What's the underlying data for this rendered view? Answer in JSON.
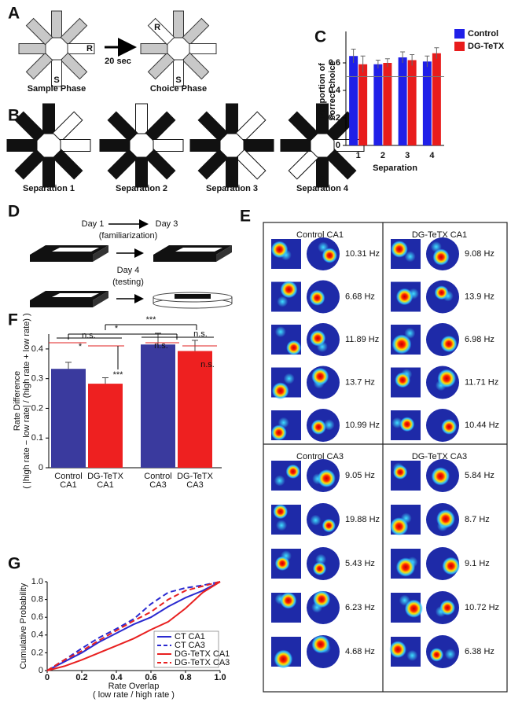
{
  "panel_labels": [
    "A",
    "B",
    "C",
    "D",
    "E",
    "F",
    "G"
  ],
  "panel_a": {
    "maze_labels": [
      "R",
      "S",
      "R",
      "S"
    ],
    "delay": "20 sec",
    "phases": [
      "Sample Phase",
      "Choice Phase"
    ]
  },
  "panel_b": {
    "start_labels": [
      "S",
      "S",
      "S",
      "S"
    ],
    "separations": [
      "Separation 1",
      "Separation 2",
      "Separation 3",
      "Separation 4"
    ]
  },
  "panel_d": {
    "day1": "Day 1",
    "day3": "Day 3",
    "familiarization": "(familiarization)",
    "day4": "Day 4",
    "testing": "(testing)"
  },
  "panel_e": {
    "groups": [
      {
        "title": "Control CA1",
        "rates": [
          "10.31 Hz",
          "6.68 Hz",
          "11.89 Hz",
          "13.7 Hz",
          "10.99 Hz"
        ]
      },
      {
        "title": "DG-TeTX CA1",
        "rates": [
          "9.08 Hz",
          "13.9 Hz",
          "6.98 Hz",
          "11.71 Hz",
          "10.44 Hz"
        ]
      },
      {
        "title": "Control CA3",
        "rates": [
          "9.05 Hz",
          "19.88 Hz",
          "5.43 Hz",
          "6.23 Hz",
          "4.68 Hz"
        ]
      },
      {
        "title": "DG-TeTX CA3",
        "rates": [
          "5.84 Hz",
          "8.7 Hz",
          "9.1 Hz",
          "10.72 Hz",
          "6.38 Hz"
        ]
      }
    ]
  },
  "chart_data": [
    {
      "type": "bar",
      "y_label": [
        "Proportion of",
        "correct choice"
      ],
      "x_label": "Separation",
      "categories": [
        "1",
        "2",
        "3",
        "4"
      ],
      "series": [
        {
          "name": "Control",
          "color": "#1f1fe8",
          "values": [
            0.65,
            0.59,
            0.64,
            0.61
          ],
          "errors": [
            0.05,
            0.03,
            0.04,
            0.04
          ]
        },
        {
          "name": "DG-TeTX",
          "color": "#e81c1c",
          "values": [
            0.59,
            0.6,
            0.62,
            0.67
          ],
          "errors": [
            0.06,
            0.03,
            0.04,
            0.04
          ]
        }
      ],
      "ylim": [
        0,
        0.8
      ],
      "yticks": [
        0,
        0.2,
        0.4,
        0.6
      ],
      "reference_line": 0.5,
      "legend": "upper right"
    },
    {
      "type": "bar",
      "y_label": [
        "Rate Difference",
        "( |high rate − low rate| / (high rate + low rate) )"
      ],
      "categories": [
        [
          "Control",
          "CA1"
        ],
        [
          "DG-TeTX",
          "CA1"
        ],
        [
          "Control",
          "CA3"
        ],
        [
          "DG-TeTX",
          "CA3"
        ]
      ],
      "values": [
        0.333,
        0.283,
        0.415,
        0.393
      ],
      "errors": [
        0.022,
        0.02,
        0.038,
        0.036
      ],
      "colors": [
        "#3a3a9e",
        "#ee2020",
        "#3a3a9e",
        "#ee2020"
      ],
      "ylim": [
        0,
        0.45
      ],
      "yticks": [
        0,
        0.1,
        0.2,
        0.3,
        0.4
      ],
      "annotations": [
        "*",
        "***",
        "n.s.",
        "*",
        "***",
        "n.s.",
        "n.s.",
        "n.s."
      ]
    },
    {
      "type": "line",
      "x_label": [
        "Rate Overlap",
        "( low rate / high rate )"
      ],
      "y_label": "Cumulative Probability",
      "x": [
        0,
        0.1,
        0.2,
        0.3,
        0.4,
        0.5,
        0.6,
        0.7,
        0.8,
        0.9,
        1
      ],
      "series": [
        {
          "name": "CT CA1",
          "color": "#2a2ad0",
          "line_style": "solid",
          "values": [
            0,
            0.1,
            0.2,
            0.32,
            0.42,
            0.52,
            0.6,
            0.72,
            0.82,
            0.9,
            1
          ]
        },
        {
          "name": "CT CA3",
          "color": "#2a2ad0",
          "line_style": "dashed",
          "values": [
            0,
            0.12,
            0.25,
            0.37,
            0.47,
            0.58,
            0.75,
            0.88,
            0.93,
            0.96,
            1
          ]
        },
        {
          "name": "DG-TeTX CA1",
          "color": "#e82020",
          "line_style": "solid",
          "values": [
            0,
            0.05,
            0.12,
            0.2,
            0.28,
            0.36,
            0.46,
            0.55,
            0.7,
            0.88,
            1
          ]
        },
        {
          "name": "DG-TeTX CA3",
          "color": "#e82020",
          "line_style": "dashed",
          "values": [
            0,
            0.12,
            0.22,
            0.34,
            0.45,
            0.56,
            0.66,
            0.8,
            0.9,
            0.95,
            1
          ]
        }
      ],
      "xlim": [
        0,
        1
      ],
      "ylim": [
        0,
        1
      ],
      "xticks": [
        0,
        0.2,
        0.4,
        0.6,
        0.8,
        {
          "value": 1,
          "label": "1.0"
        }
      ],
      "yticks": [
        0,
        0.2,
        0.4,
        0.6,
        0.8,
        {
          "value": 1,
          "label": "1.0"
        }
      ],
      "legend": "lower right"
    }
  ]
}
